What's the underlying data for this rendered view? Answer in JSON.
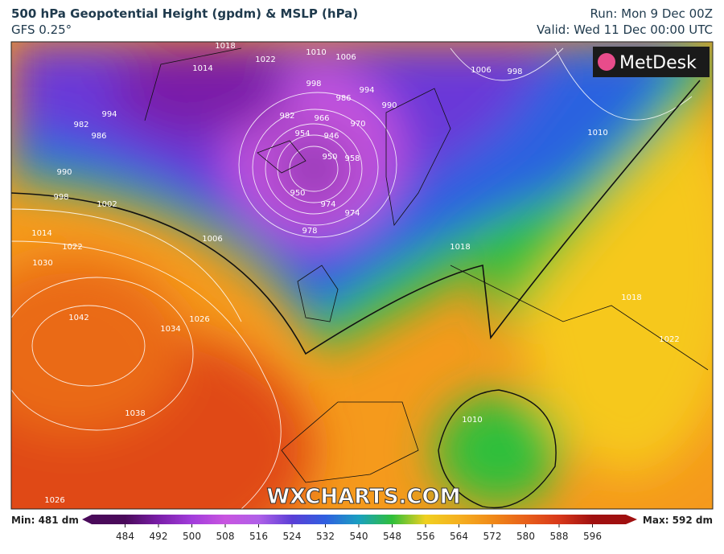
{
  "header": {
    "title": "500 hPa Geopotential Height (gpdm) & MSLP (hPa)",
    "subtitle": "GFS 0.25°",
    "run": "Run: Mon 9 Dec 00Z",
    "valid": "Valid: Wed 11 Dec 00:00 UTC"
  },
  "logo": "MetDesk",
  "watermark": "WXCHARTS.COM",
  "isobar_labels": [
    "1022",
    "1014",
    "1018",
    "1006",
    "1010",
    "998",
    "994",
    "990",
    "986",
    "982",
    "966",
    "970",
    "954",
    "946",
    "950",
    "958",
    "950",
    "974",
    "974",
    "978",
    "982",
    "986",
    "994",
    "990",
    "998",
    "1002",
    "1014",
    "1022",
    "1030",
    "1006",
    "1042",
    "1034",
    "1026",
    "1038",
    "1026",
    "1006",
    "998",
    "1010",
    "1018",
    "1018",
    "1022",
    "1010"
  ],
  "colorbar": {
    "min_label": "Min: 481 dm",
    "max_label": "Max: 592 dm",
    "lim": [
      476,
      604
    ],
    "ticks": [
      484,
      492,
      500,
      508,
      516,
      524,
      532,
      540,
      548,
      556,
      564,
      572,
      580,
      588,
      596
    ],
    "colors": [
      "#4a0a5a",
      "#7a1ea8",
      "#a23ddb",
      "#c855e0",
      "#b060e8",
      "#5b3fd6",
      "#2f5fe0",
      "#1aa0c0",
      "#2fbf3a",
      "#f0d020",
      "#f5b020",
      "#f08a18",
      "#e8601a",
      "#d8381a",
      "#a01010"
    ]
  }
}
